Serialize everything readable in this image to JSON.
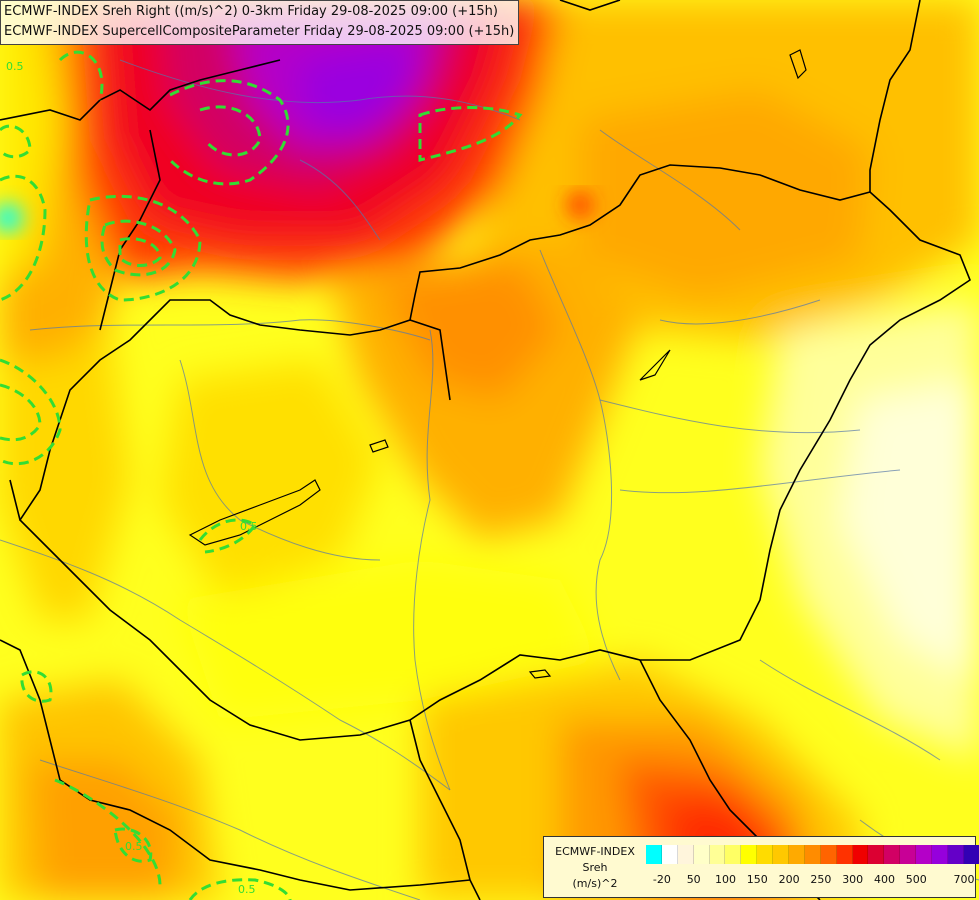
{
  "title": {
    "line1": "ECMWF-INDEX Sreh Right ((m/s)^2) 0-3km Friday 29-08-2025 09:00 (+15h)",
    "line2": "ECMWF-INDEX SupercellCompositeParameter Friday 29-08-2025 09:00 (+15h)"
  },
  "legend": {
    "title_line1": "ECMWF-INDEX",
    "title_line2": "Sreh",
    "title_line3": "(m/s)^2",
    "colors": [
      "#00ffff",
      "#ffffff",
      "#fff5dc",
      "#ffffc8",
      "#ffff96",
      "#ffff64",
      "#ffff00",
      "#ffdc00",
      "#ffc800",
      "#ffaa00",
      "#ff8c00",
      "#ff6400",
      "#ff3200",
      "#f00000",
      "#dc0032",
      "#d20064",
      "#c80096",
      "#b400c8",
      "#9600dc",
      "#6400c8",
      "#3200b4",
      "#000096"
    ],
    "ticks": [
      "-20",
      "50",
      "100",
      "150",
      "200",
      "250",
      "300",
      "400",
      "500",
      "700"
    ]
  },
  "contour_labels": [
    "0.5",
    "0.5",
    "0.5",
    "0.5"
  ],
  "colors": {
    "contour": "#33dd33",
    "border": "#000000",
    "river": "#5577aa"
  }
}
